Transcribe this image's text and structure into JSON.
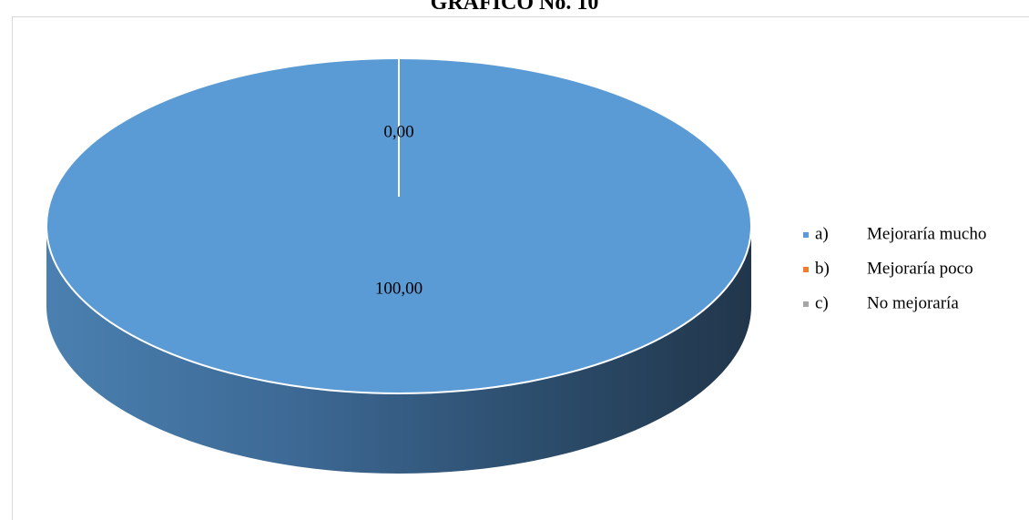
{
  "chart_data": {
    "type": "pie",
    "title": "GRAFICO No. 10",
    "categories": [
      "a)",
      "b)",
      "c)"
    ],
    "series": [
      {
        "values": [
          100.0,
          0.0,
          0.0
        ]
      }
    ],
    "legend": [
      {
        "marker": "a)",
        "text": "Mejoraría mucho",
        "color": "#5b9bd5"
      },
      {
        "marker": "b)",
        "text": "Mejoraría poco",
        "color": "#ed7d31"
      },
      {
        "marker": "c)",
        "text": "No mejoraría",
        "color": "#a5a5a5"
      }
    ],
    "data_labels": [
      "100,00",
      "0,00"
    ],
    "legend_position": "right",
    "style": "3d-pie"
  }
}
